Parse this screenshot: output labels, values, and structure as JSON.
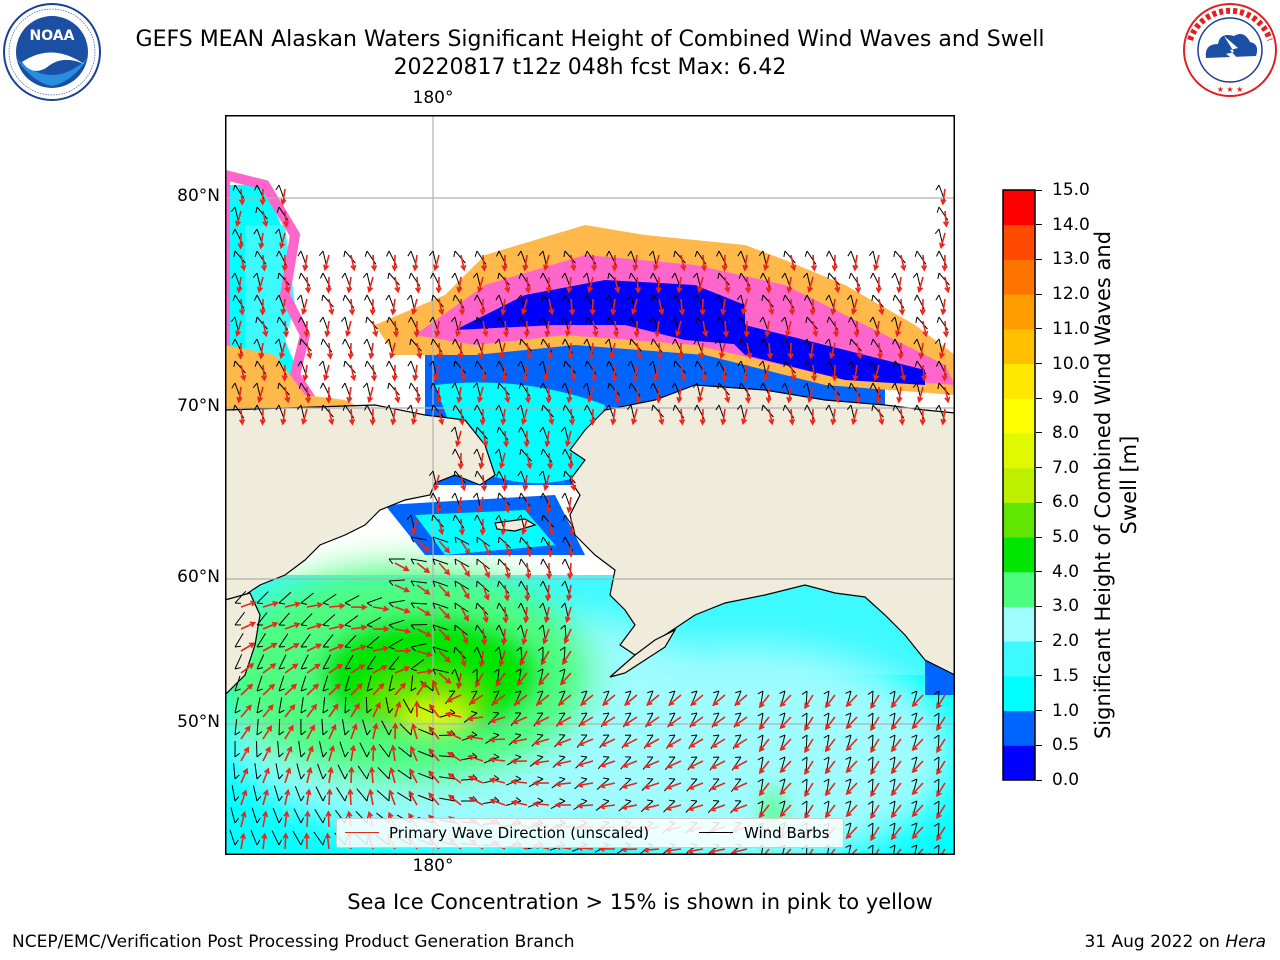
{
  "title": {
    "line1": "GEFS MEAN Alaskan Waters Significant Height of Combined Wind Waves and Swell",
    "line2": "20220817 t12z 048h fcst   Max: 6.42"
  },
  "logos": {
    "left": {
      "name": "noaa-logo",
      "text": "NOAA",
      "ring_text": "NATIONAL OCEANIC AND ATMOSPHERIC ADMINISTRATION · U.S. DEPARTMENT OF COMMERCE"
    },
    "right": {
      "name": "nws-logo",
      "ring_text": "NATIONAL WEATHER SERVICE"
    }
  },
  "map": {
    "lat_labels": [
      "80°N",
      "70°N",
      "60°N",
      "50°N"
    ],
    "lon_label_top": "180°",
    "lon_label_bottom": "180°",
    "colors": {
      "land": "#efecdc",
      "frame": "#000000",
      "grid": "#b0b0b0",
      "wave_arrow": "#e8261c",
      "wind_barb": "#000000"
    },
    "legend": {
      "wave_label": "Primary Wave Direction (unscaled)",
      "barb_label": "Wind Barbs"
    }
  },
  "colorbar": {
    "label": "Significant Height of Combined Wind Waves and Swell [m]",
    "ticks": [
      "0.0",
      "0.5",
      "1.0",
      "1.5",
      "2.0",
      "3.0",
      "4.0",
      "5.0",
      "6.0",
      "7.0",
      "8.0",
      "9.0",
      "10.0",
      "11.0",
      "12.0",
      "13.0",
      "14.0",
      "15.0"
    ],
    "colors": [
      "#0000ff",
      "#0064ff",
      "#00ffff",
      "#3cfaff",
      "#9ffcff",
      "#4dfd80",
      "#00e600",
      "#60e600",
      "#bff000",
      "#e0f800",
      "#ffff00",
      "#ffe800",
      "#ffc000",
      "#ff9d00",
      "#ff7400",
      "#ff4a00",
      "#ff0000"
    ]
  },
  "caption": "Sea Ice Concentration > 15% is shown in pink to yellow",
  "footer": {
    "left": "NCEP/EMC/Verification Post Processing Product Generation Branch",
    "right_date": "31 Aug 2022 on",
    "right_machine": "Hera"
  }
}
